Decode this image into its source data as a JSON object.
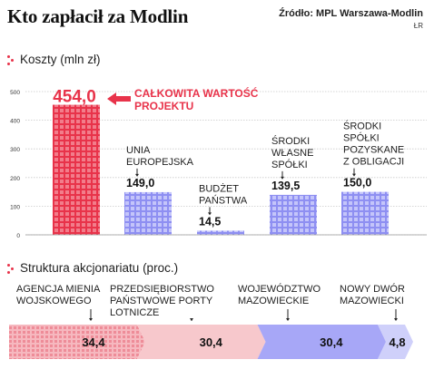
{
  "header": {
    "title": "Kto zapłacił za Modlin",
    "source": "Źródło: MPL Warszawa-Modlin",
    "credit": "ŁR"
  },
  "colors": {
    "accent": "#e8334a",
    "red_bar": "#e8334a",
    "blue_bar": "#8e8ff2",
    "pink_segment": "#f7c8cc",
    "violet_segment": "#a7a7f7",
    "light_segment": "#cfd0fa",
    "grid": "#c9c9c9"
  },
  "sections": {
    "costs_heading": "Koszty (mln zł)",
    "shares_heading": "Struktura akcjonariatu (proc.)"
  },
  "chart_data": [
    {
      "type": "bar",
      "title": "Koszty (mln zł)",
      "ylim": [
        0,
        500
      ],
      "yticks": [
        "0",
        "100",
        "200",
        "300",
        "400",
        "500"
      ],
      "grid": true,
      "bars": [
        {
          "value": 454.0,
          "value_label": "454,0",
          "annotation": [
            "CAŁKOWITA WARTOŚĆ",
            "PROJEKTU"
          ]
        },
        {
          "value": 149.0,
          "value_label": "149,0",
          "annotation": [
            "UNIA",
            "EUROPEJSKA"
          ]
        },
        {
          "value": 14.5,
          "value_label": "14,5",
          "annotation": [
            "BUDŻET",
            "PAŃSTWA"
          ]
        },
        {
          "value": 139.5,
          "value_label": "139,5",
          "annotation": [
            "ŚRODKI",
            "WŁASNE",
            "SPÓŁKI"
          ]
        },
        {
          "value": 150.0,
          "value_label": "150,0",
          "annotation": [
            "ŚRODKI",
            "SPÓŁKI",
            "POZYSKANE",
            "Z OBLIGACJI"
          ]
        }
      ]
    },
    {
      "type": "bar",
      "title": "Struktura akcjonariatu (proc.)",
      "orientation": "horizontal-stacked",
      "segments": [
        {
          "value": 34.4,
          "value_label": "34,4",
          "annotation": [
            "AGENCJA MIENIA",
            "WOJSKOWEGO"
          ]
        },
        {
          "value": 30.4,
          "value_label": "30,4",
          "annotation": [
            "PRZEDSIĘBIORSTWO",
            "PAŃSTWOWE PORTY",
            "LOTNICZE"
          ]
        },
        {
          "value": 30.4,
          "value_label": "30,4",
          "annotation": [
            "WOJEWÓDZTWO",
            "MAZOWIECKIE"
          ]
        },
        {
          "value": 4.8,
          "value_label": "4,8",
          "annotation": [
            "NOWY DWÓR",
            "MAZOWIECKI"
          ]
        }
      ]
    }
  ]
}
